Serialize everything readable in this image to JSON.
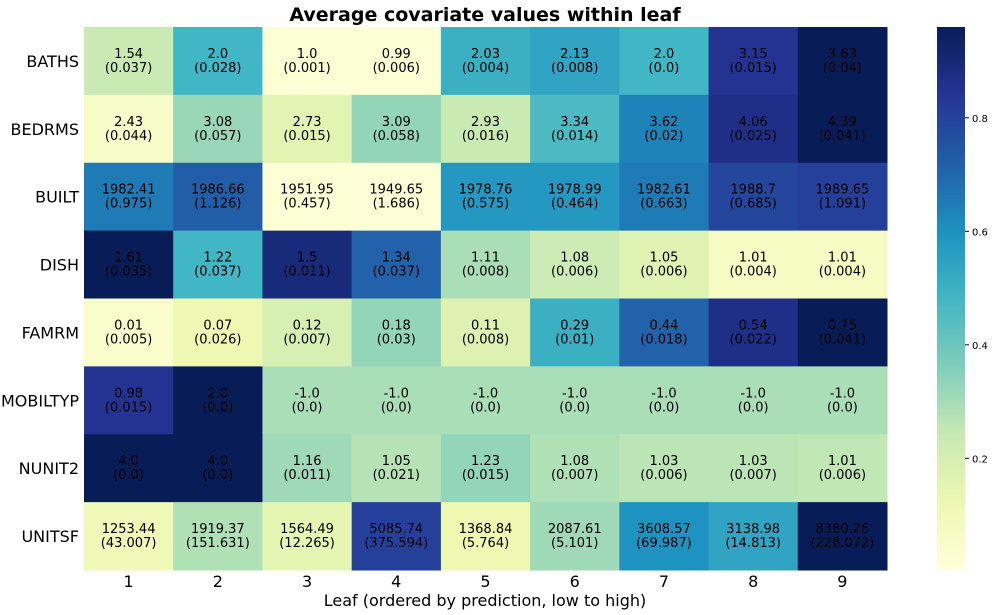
{
  "chart_data": {
    "type": "heatmap",
    "title": "Average covariate values within leaf",
    "xlabel": "Leaf (ordered by prediction, low to high)",
    "ylabel": "",
    "columns": [
      "1",
      "2",
      "3",
      "4",
      "5",
      "6",
      "7",
      "8",
      "9"
    ],
    "rows": [
      {
        "name": "BATHS",
        "values": [
          "1.54",
          "2.0",
          "1.0",
          "0.99",
          "2.03",
          "2.13",
          "2.0",
          "3.15",
          "3.63"
        ],
        "errors": [
          "(0.037)",
          "(0.028)",
          "(0.001)",
          "(0.006)",
          "(0.004)",
          "(0.008)",
          "(0.0)",
          "(0.015)",
          "(0.04)"
        ],
        "intensity": [
          0.24,
          0.5,
          0.02,
          0.02,
          0.52,
          0.56,
          0.5,
          0.88,
          1.0
        ]
      },
      {
        "name": "BEDRMS",
        "values": [
          "2.43",
          "3.08",
          "2.73",
          "3.09",
          "2.93",
          "3.34",
          "3.62",
          "4.06",
          "4.39"
        ],
        "errors": [
          "(0.044)",
          "(0.057)",
          "(0.015)",
          "(0.058)",
          "(0.016)",
          "(0.014)",
          "(0.02)",
          "(0.025)",
          "(0.041)"
        ],
        "intensity": [
          0.05,
          0.33,
          0.16,
          0.34,
          0.24,
          0.48,
          0.66,
          0.9,
          1.0
        ]
      },
      {
        "name": "BUILT",
        "values": [
          "1982.41",
          "1986.66",
          "1951.95",
          "1949.65",
          "1978.76",
          "1978.99",
          "1982.61",
          "1988.7",
          "1989.65"
        ],
        "errors": [
          "(0.975)",
          "(1.126)",
          "(0.457)",
          "(1.686)",
          "(0.575)",
          "(0.464)",
          "(0.663)",
          "(0.685)",
          "(1.091)"
        ],
        "intensity": [
          0.68,
          0.75,
          0.02,
          0.01,
          0.6,
          0.6,
          0.68,
          0.82,
          0.84
        ]
      },
      {
        "name": "DISH",
        "values": [
          "1.61",
          "1.22",
          "1.5",
          "1.34",
          "1.11",
          "1.08",
          "1.05",
          "1.01",
          "1.01"
        ],
        "errors": [
          "(0.035)",
          "(0.037)",
          "(0.011)",
          "(0.037)",
          "(0.008)",
          "(0.006)",
          "(0.006)",
          "(0.004)",
          "(0.004)"
        ],
        "intensity": [
          1.0,
          0.5,
          0.93,
          0.74,
          0.3,
          0.23,
          0.17,
          0.07,
          0.07
        ]
      },
      {
        "name": "FAMRM",
        "values": [
          "0.01",
          "0.07",
          "0.12",
          "0.18",
          "0.11",
          "0.29",
          "0.44",
          "0.54",
          "0.75"
        ],
        "errors": [
          "(0.005)",
          "(0.026)",
          "(0.007)",
          "(0.03)",
          "(0.008)",
          "(0.01)",
          "(0.018)",
          "(0.022)",
          "(0.041)"
        ],
        "intensity": [
          0.04,
          0.12,
          0.2,
          0.34,
          0.18,
          0.52,
          0.74,
          0.9,
          1.0
        ]
      },
      {
        "name": "MOBILTYP",
        "values": [
          "0.98",
          "2.0",
          "-1.0",
          "-1.0",
          "-1.0",
          "-1.0",
          "-1.0",
          "-1.0",
          "-1.0"
        ],
        "errors": [
          "(0.015)",
          "(0.0)",
          "(0.0)",
          "(0.0)",
          "(0.0)",
          "(0.0)",
          "(0.0)",
          "(0.0)",
          "(0.0)"
        ],
        "intensity": [
          0.88,
          1.0,
          0.3,
          0.3,
          0.3,
          0.3,
          0.3,
          0.3,
          0.3
        ]
      },
      {
        "name": "NUNIT2",
        "values": [
          "4.0",
          "4.0",
          "1.16",
          "1.05",
          "1.23",
          "1.08",
          "1.03",
          "1.03",
          "1.01"
        ],
        "errors": [
          "(0.0)",
          "(0.0)",
          "(0.011)",
          "(0.021)",
          "(0.015)",
          "(0.007)",
          "(0.006)",
          "(0.007)",
          "(0.006)"
        ],
        "intensity": [
          1.0,
          1.0,
          0.32,
          0.28,
          0.34,
          0.29,
          0.27,
          0.27,
          0.26
        ]
      },
      {
        "name": "UNITSF",
        "values": [
          "1253.44",
          "1919.37",
          "1564.49",
          "5085.74",
          "1368.84",
          "2087.61",
          "3608.57",
          "3138.98",
          "8380.26"
        ],
        "errors": [
          "(43.007)",
          "(151.631)",
          "(12.265)",
          "(375.594)",
          "(5.764)",
          "(5.101)",
          "(69.987)",
          "(14.813)",
          "(228.072)"
        ],
        "intensity": [
          0.1,
          0.29,
          0.15,
          0.84,
          0.12,
          0.32,
          0.62,
          0.56,
          1.0
        ]
      }
    ],
    "colorbar": {
      "colormap": "YlGnBu",
      "range": [
        0,
        1
      ],
      "ticks": [
        "0.2",
        "0.4",
        "0.6",
        "0.8"
      ]
    },
    "grid": false,
    "legend": "colorbar-right"
  }
}
